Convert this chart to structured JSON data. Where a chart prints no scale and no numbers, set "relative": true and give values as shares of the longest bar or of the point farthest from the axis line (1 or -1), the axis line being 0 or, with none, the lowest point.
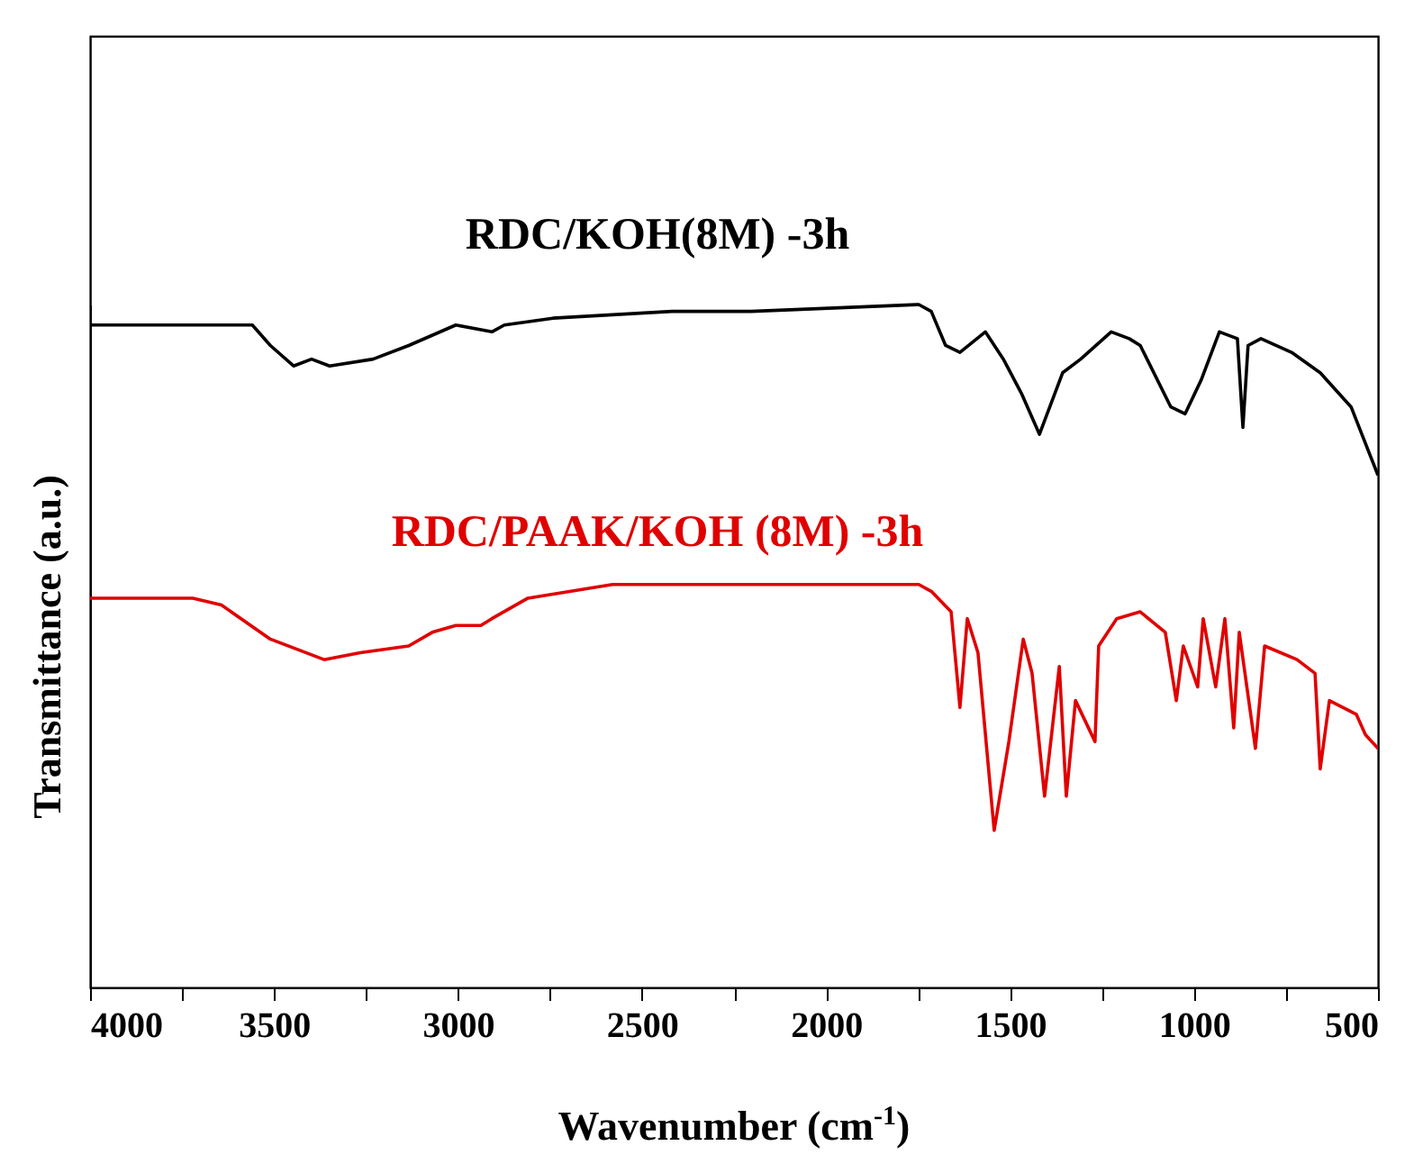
{
  "chart_data": {
    "type": "line",
    "xlabel": "Wavenumber (cm$^{-1}$)",
    "ylabel": "Transmittance (a.u.)",
    "relative": true,
    "xlim": [
      4000,
      500
    ],
    "xticks": [
      4000,
      {
        "value": 3750,
        "label": null
      },
      3500,
      {
        "value": 3250,
        "label": null
      },
      3000,
      {
        "value": 2750,
        "label": null
      },
      2500,
      {
        "value": 2250,
        "label": null
      },
      2000,
      {
        "value": 1750,
        "label": null
      },
      1500,
      {
        "value": 1250,
        "label": null
      },
      1000,
      {
        "value": 750,
        "label": null
      },
      500
    ],
    "series": [
      {
        "name": "RDC/KOH(8M) -3h",
        "color": "#000000",
        "x": [
          4000,
          3706,
          3559,
          3510,
          3447,
          3398,
          3349,
          3231,
          3134,
          3006,
          2908,
          2874,
          2742,
          2419,
          2287,
          2204,
          1748,
          1714,
          1675,
          1636,
          1567,
          1518,
          1469,
          1420,
          1357,
          1308,
          1225,
          1176,
          1146,
          1063,
          1024,
          980,
          931,
          882,
          867,
          853,
          818,
          735,
          657,
          573,
          500
        ],
        "values": [
          0.97,
          0.97,
          0.97,
          0.94,
          0.91,
          0.92,
          0.91,
          0.92,
          0.94,
          0.97,
          0.96,
          0.97,
          0.98,
          0.99,
          0.99,
          0.99,
          1,
          0.99,
          0.94,
          0.93,
          0.96,
          0.92,
          0.87,
          0.81,
          0.9,
          0.92,
          0.96,
          0.95,
          0.94,
          0.85,
          0.84,
          0.89,
          0.96,
          0.95,
          0.82,
          0.94,
          0.95,
          0.93,
          0.9,
          0.85,
          0.75
        ]
      },
      {
        "name": "RDC/PAAK/KOH (8M) -3h",
        "color": "#e00000",
        "x": [
          4000,
          3721,
          3643,
          3510,
          3364,
          3266,
          3134,
          3070,
          3006,
          2938,
          2908,
          2810,
          2580,
          2204,
          1748,
          1714,
          1660,
          1636,
          1616,
          1587,
          1543,
          1503,
          1464,
          1440,
          1406,
          1366,
          1347,
          1322,
          1269,
          1259,
          1210,
          1146,
          1078,
          1048,
          1029,
          990,
          975,
          941,
          916,
          892,
          877,
          833,
          808,
          720,
          671,
          657,
          632,
          559,
          534,
          500
        ],
        "values": [
          0.57,
          0.57,
          0.56,
          0.51,
          0.48,
          0.49,
          0.5,
          0.52,
          0.53,
          0.53,
          0.54,
          0.57,
          0.59,
          0.59,
          0.59,
          0.58,
          0.55,
          0.41,
          0.54,
          0.49,
          0.23,
          0.36,
          0.51,
          0.46,
          0.28,
          0.47,
          0.28,
          0.42,
          0.36,
          0.5,
          0.54,
          0.55,
          0.52,
          0.42,
          0.5,
          0.44,
          0.54,
          0.44,
          0.54,
          0.38,
          0.52,
          0.35,
          0.5,
          0.48,
          0.46,
          0.32,
          0.42,
          0.4,
          0.37,
          0.35
        ]
      }
    ]
  }
}
